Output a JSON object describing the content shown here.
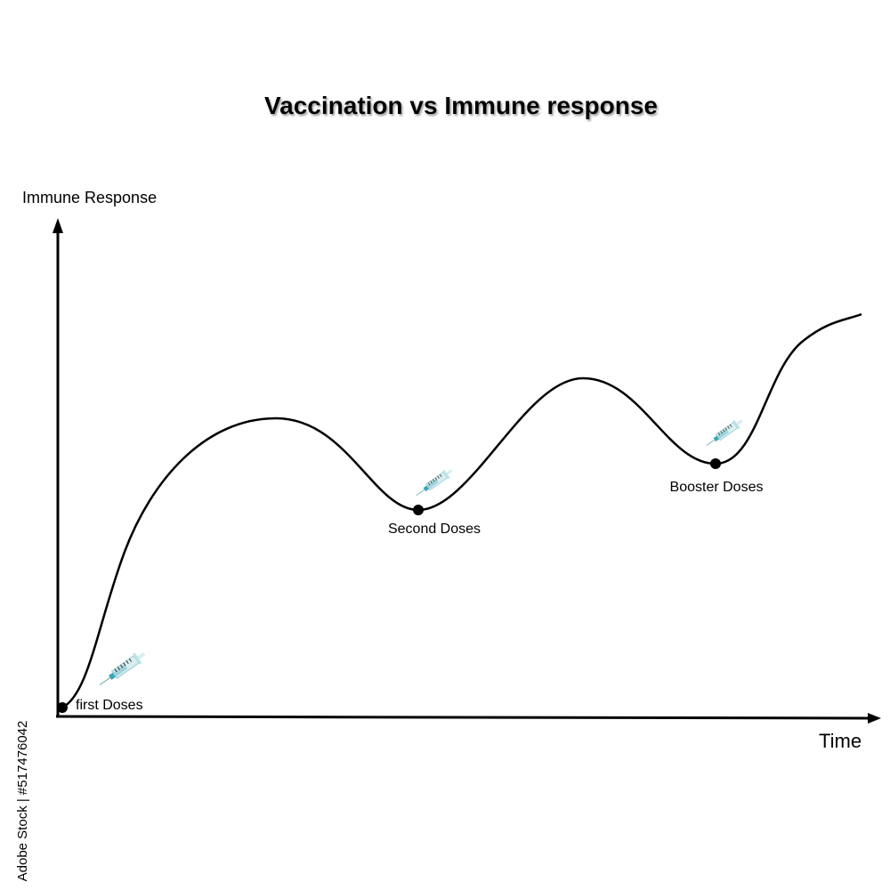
{
  "title": "Vaccination vs Immune response",
  "y_axis_label": "Immune Response",
  "x_axis_label": "Time",
  "annotations": [
    "first Doses",
    "Second Doses",
    "Booster Doses"
  ],
  "watermark": "Adobe Stock | #517476042"
}
